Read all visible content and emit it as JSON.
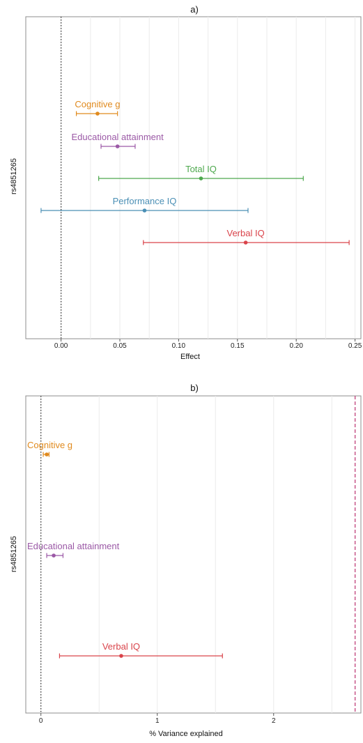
{
  "chart_data": [
    {
      "type": "forest",
      "title": "a)",
      "xlabel": "Effect",
      "ylabel": "rs4851265",
      "xlim": [
        -0.03,
        0.255
      ],
      "xticks": [
        0.0,
        0.05,
        0.1,
        0.15,
        0.2,
        0.25
      ],
      "xtick_labels": [
        "0.00",
        "0.05",
        "0.10",
        "0.15",
        "0.20",
        "0.25"
      ],
      "minor_grid": [
        0.025,
        0.075,
        0.125,
        0.175,
        0.225
      ],
      "reference_line": {
        "x": 0,
        "style": "dotted",
        "color": "#333333"
      },
      "series": [
        {
          "name": "Cognitive g",
          "estimate": 0.031,
          "lower": 0.013,
          "upper": 0.048,
          "color": "#E08A1E"
        },
        {
          "name": "Educational attainment",
          "estimate": 0.048,
          "lower": 0.034,
          "upper": 0.063,
          "color": "#9B59A6"
        },
        {
          "name": "Total IQ",
          "estimate": 0.119,
          "lower": 0.032,
          "upper": 0.206,
          "color": "#4DA84D"
        },
        {
          "name": "Performance IQ",
          "estimate": 0.071,
          "lower": -0.017,
          "upper": 0.159,
          "color": "#4A8FB5"
        },
        {
          "name": "Verbal IQ",
          "estimate": 0.157,
          "lower": 0.07,
          "upper": 0.245,
          "color": "#D9434A"
        }
      ]
    },
    {
      "type": "forest",
      "title": "b)",
      "xlabel": "% Variance explained",
      "ylabel": "rs4851265",
      "xlim": [
        -0.13,
        2.75
      ],
      "xticks": [
        0,
        1,
        2
      ],
      "xtick_labels": [
        "0",
        "1",
        "2"
      ],
      "minor_grid": [
        0.5,
        1.5,
        2.5
      ],
      "reference_line": {
        "x": 0,
        "style": "dotted",
        "color": "#333333"
      },
      "extra_line": {
        "x": 2.7,
        "style": "dashed",
        "color": "#C0407A"
      },
      "series": [
        {
          "name": "Cognitive g",
          "estimate": 0.05,
          "lower": 0.02,
          "upper": 0.07,
          "color": "#E08A1E"
        },
        {
          "name": "Educational attainment",
          "estimate": 0.11,
          "lower": 0.05,
          "upper": 0.19,
          "color": "#9B59A6"
        },
        {
          "name": "Verbal IQ",
          "estimate": 0.69,
          "lower": 0.16,
          "upper": 1.56,
          "color": "#D9434A"
        }
      ]
    }
  ]
}
